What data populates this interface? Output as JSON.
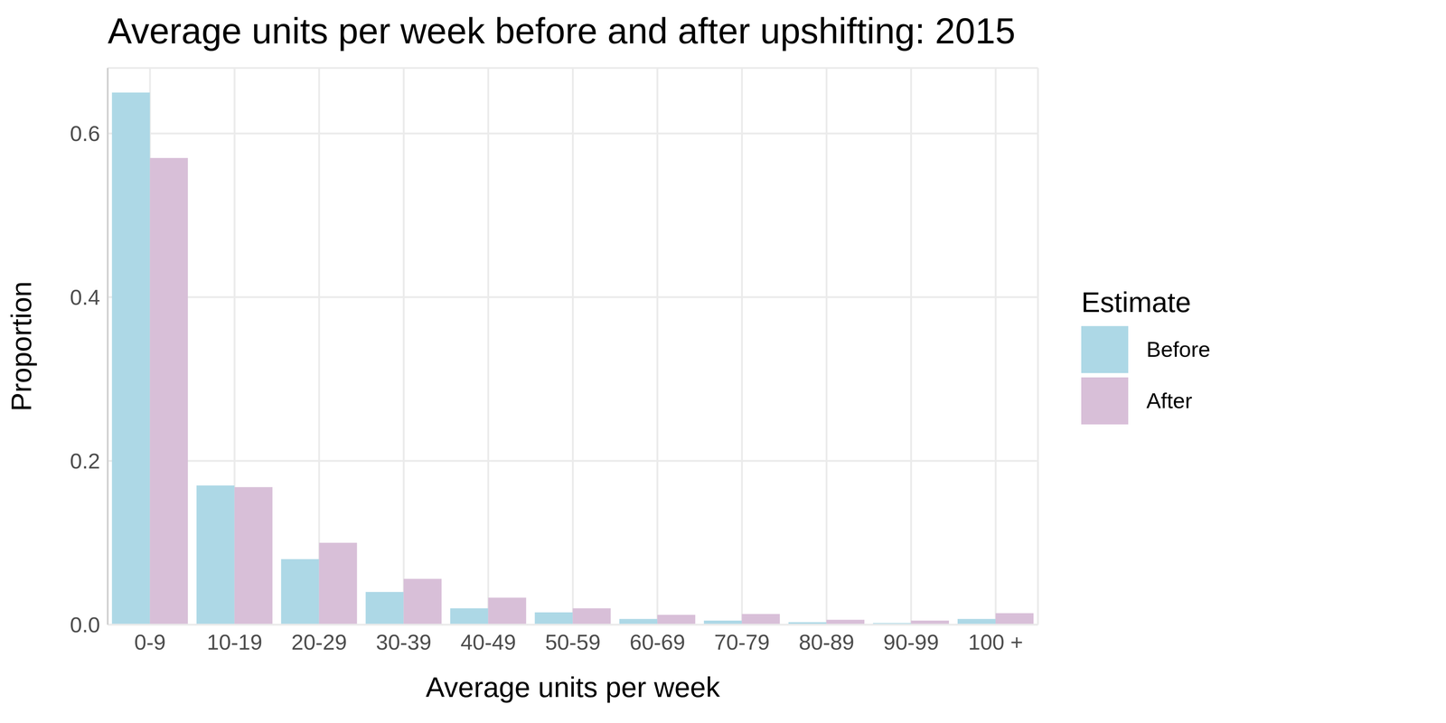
{
  "chart_data": {
    "type": "bar",
    "title": "Average units per week before and after upshifting: 2015",
    "x_label": "Average units per week",
    "y_label": "Proportion",
    "legend_title": "Estimate",
    "categories": [
      "0-9",
      "10-19",
      "20-29",
      "30-39",
      "40-49",
      "50-59",
      "60-69",
      "70-79",
      "80-89",
      "90-99",
      "100 +"
    ],
    "series": [
      {
        "name": "Before",
        "color": "#ADD8E6",
        "values": [
          0.65,
          0.17,
          0.08,
          0.04,
          0.02,
          0.015,
          0.007,
          0.005,
          0.003,
          0.002,
          0.007
        ]
      },
      {
        "name": "After",
        "color": "#D8BFD8",
        "values": [
          0.57,
          0.168,
          0.1,
          0.056,
          0.033,
          0.02,
          0.012,
          0.013,
          0.006,
          0.005,
          0.014
        ]
      }
    ],
    "ylim": [
      0,
      0.68
    ],
    "yticks": [
      {
        "value": 0,
        "label": "0.0"
      },
      0.2,
      0.4,
      0.6
    ],
    "grid": true,
    "legend": "right"
  }
}
